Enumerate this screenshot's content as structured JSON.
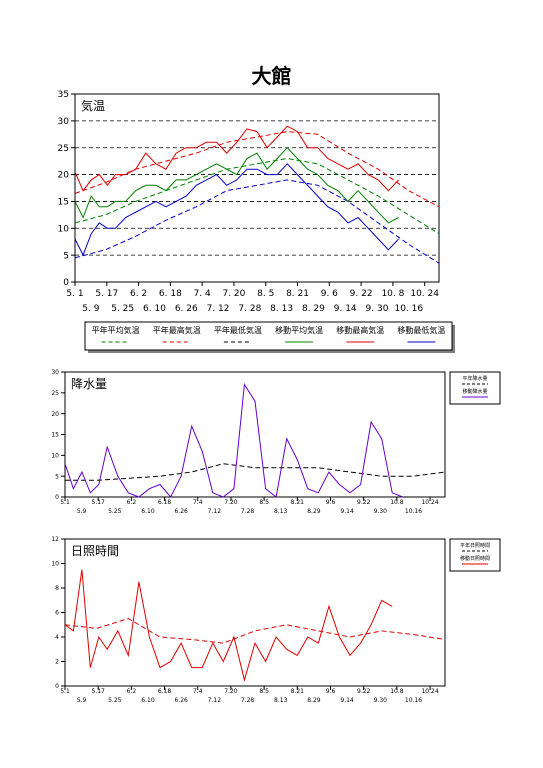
{
  "page_title": "大館",
  "chart_data": [
    {
      "type": "line",
      "title": "気温",
      "ylim": [
        0,
        35
      ],
      "y_ticks": [
        "0",
        "5",
        "10",
        "15",
        "20",
        "25",
        "30",
        "35"
      ],
      "grid": true,
      "x_ticks_top": [
        "5. 1",
        "5. 17",
        "6. 2",
        "6. 18",
        "7. 4",
        "7. 20",
        "8. 5",
        "8. 21",
        "9. 6",
        "9. 22",
        "10. 8",
        "10. 24"
      ],
      "x_ticks_bottom": [
        "5. 9",
        "5. 25",
        "6. 10",
        "6. 26",
        "7. 12",
        "7. 28",
        "8. 13",
        "8. 29",
        "9. 14",
        "9. 30",
        "10. 16"
      ],
      "legend_position": "bottom",
      "legend": [
        {
          "label": "平年平均気温",
          "color": "#008000",
          "dash": true
        },
        {
          "label": "平年最高気温",
          "color": "#e00000",
          "dash": true
        },
        {
          "label": "平年最低気温",
          "color": "#000000",
          "dash": true
        },
        {
          "label": "移動平均気温",
          "color": "#008000",
          "dash": false
        },
        {
          "label": "移動最高気温",
          "color": "#e00000",
          "dash": false
        },
        {
          "label": "移動最低気温",
          "color": "#0000cc",
          "dash": false
        }
      ],
      "series": [
        {
          "name": "平年平均気温",
          "color": "#008000",
          "dash": true,
          "x_days": [
            0,
            15,
            30,
            45,
            60,
            75,
            90,
            105,
            120,
            135,
            150,
            165,
            180
          ],
          "values": [
            11,
            12.5,
            15,
            17,
            19,
            21,
            22,
            23,
            22,
            19,
            16,
            12.5,
            9
          ]
        },
        {
          "name": "平年最高気温",
          "color": "#e00000",
          "dash": true,
          "x_days": [
            0,
            15,
            30,
            45,
            60,
            75,
            90,
            105,
            120,
            135,
            150,
            165,
            180
          ],
          "values": [
            16.5,
            18.5,
            21,
            22.5,
            24,
            26,
            27,
            28,
            27.5,
            24,
            21,
            17,
            14
          ]
        },
        {
          "name": "平年最低気温",
          "color": "#0000cc",
          "dash": true,
          "x_days": [
            0,
            15,
            30,
            45,
            60,
            75,
            90,
            105,
            120,
            135,
            150,
            165,
            180
          ],
          "values": [
            4.5,
            6,
            8.5,
            11.5,
            14,
            17,
            18,
            19,
            18,
            15,
            11,
            7,
            3.5
          ]
        },
        {
          "name": "移動平均気温",
          "color": "#008000",
          "dash": false,
          "x_days": [
            0,
            4,
            8,
            12,
            16,
            20,
            25,
            30,
            35,
            40,
            45,
            50,
            55,
            60,
            65,
            70,
            75,
            80,
            85,
            90,
            95,
            100,
            105,
            110,
            115,
            120,
            125,
            130,
            135,
            140,
            145,
            150,
            155,
            160
          ],
          "values": [
            15,
            12,
            16,
            14,
            14,
            15,
            15,
            17,
            18,
            18,
            17,
            19,
            19,
            20,
            21,
            22,
            21,
            20,
            23,
            24,
            21,
            23,
            25,
            23,
            21,
            20,
            18,
            17,
            15,
            17,
            15,
            13,
            11,
            12
          ]
        },
        {
          "name": "移動最高気温",
          "color": "#e00000",
          "dash": false,
          "x_days": [
            0,
            4,
            8,
            12,
            16,
            20,
            25,
            30,
            35,
            40,
            45,
            50,
            55,
            60,
            65,
            70,
            75,
            80,
            85,
            90,
            95,
            100,
            105,
            110,
            115,
            120,
            125,
            130,
            135,
            140,
            145,
            150,
            155,
            160
          ],
          "values": [
            20.5,
            17,
            19,
            20,
            18,
            20,
            20,
            21,
            24,
            22,
            21,
            24,
            25,
            25,
            26,
            26,
            24,
            26,
            28.5,
            28,
            25,
            27,
            29,
            28,
            25,
            25,
            23,
            22,
            21,
            22,
            20,
            19,
            17,
            19
          ]
        },
        {
          "name": "移動最低気温",
          "color": "#0000cc",
          "dash": false,
          "x_days": [
            0,
            4,
            8,
            12,
            16,
            20,
            25,
            30,
            35,
            40,
            45,
            50,
            55,
            60,
            65,
            70,
            75,
            80,
            85,
            90,
            95,
            100,
            105,
            110,
            115,
            120,
            125,
            130,
            135,
            140,
            145,
            150,
            155,
            160
          ],
          "values": [
            8,
            5,
            9,
            11,
            10,
            10,
            12,
            13,
            14,
            15,
            14,
            15,
            16,
            18,
            19,
            20,
            18,
            19,
            21,
            21,
            20,
            20,
            22,
            20,
            18,
            16,
            14,
            13,
            11,
            12,
            10,
            8,
            6,
            8
          ]
        }
      ]
    },
    {
      "type": "line",
      "title": "降水量",
      "ylim": [
        0,
        30
      ],
      "y_ticks": [
        "0",
        "5",
        "10",
        "15",
        "20",
        "25",
        "30"
      ],
      "grid": false,
      "x_ticks_top": [
        "5.1",
        "5.17",
        "6.2",
        "6.18",
        "7.4",
        "7.20",
        "8.5",
        "8.21",
        "9.6",
        "9.22",
        "10.8",
        "10.24"
      ],
      "x_ticks_bottom": [
        "5.9",
        "5.25",
        "6.10",
        "6.26",
        "7.12",
        "7.28",
        "8.13",
        "8.29",
        "9.14",
        "9.30",
        "10.16"
      ],
      "legend_position": "right",
      "legend": [
        {
          "label": "平年降水量",
          "color": "#000000",
          "dash": true
        },
        {
          "label": "移動降水量",
          "color": "#6600cc",
          "dash": false
        }
      ],
      "series": [
        {
          "name": "平年降水量",
          "color": "#000000",
          "dash": true,
          "x_days": [
            0,
            15,
            30,
            45,
            60,
            75,
            90,
            105,
            120,
            135,
            150,
            165,
            180
          ],
          "values": [
            4,
            4,
            4.5,
            5,
            6,
            8,
            7,
            7,
            7,
            6,
            5,
            5,
            6
          ]
        },
        {
          "name": "移動降水量",
          "color": "#6600cc",
          "dash": false,
          "x_days": [
            0,
            4,
            8,
            12,
            16,
            20,
            25,
            30,
            35,
            40,
            45,
            50,
            55,
            60,
            65,
            70,
            75,
            80,
            85,
            90,
            95,
            100,
            105,
            110,
            115,
            120,
            125,
            130,
            135,
            140,
            145,
            150,
            155,
            160
          ],
          "values": [
            8,
            2,
            6,
            1,
            3,
            12,
            5,
            1,
            0,
            2,
            3,
            0,
            5,
            17,
            11,
            1,
            0,
            2,
            27,
            23,
            2,
            0,
            14,
            9,
            2,
            1,
            6,
            3,
            1,
            3,
            18,
            14,
            1,
            0
          ]
        }
      ]
    },
    {
      "type": "line",
      "title": "日照時間",
      "ylim": [
        0,
        12
      ],
      "y_ticks": [
        "0",
        "2",
        "4",
        "6",
        "8",
        "10",
        "12"
      ],
      "grid": false,
      "x_ticks_top": [
        "5.1",
        "5.17",
        "6.2",
        "6.18",
        "7.4",
        "7.20",
        "8.5",
        "8.21",
        "9.6",
        "9.22",
        "10.8",
        "10.24"
      ],
      "x_ticks_bottom": [
        "5.9",
        "5.25",
        "6.10",
        "6.26",
        "7.12",
        "7.28",
        "8.13",
        "8.29",
        "9.14",
        "9.30",
        "10.16"
      ],
      "legend_position": "right",
      "legend": [
        {
          "label": "平年日照時間",
          "color": "#000000",
          "dash": true
        },
        {
          "label": "移動日照時間",
          "color": "#e00000",
          "dash": false
        }
      ],
      "series": [
        {
          "name": "平年日照時間",
          "color": "#e00000",
          "dash": true,
          "x_days": [
            0,
            15,
            30,
            45,
            60,
            75,
            90,
            105,
            120,
            135,
            150,
            165,
            180
          ],
          "values": [
            5,
            4.7,
            5.5,
            4,
            3.8,
            3.5,
            4.5,
            5,
            4.5,
            4,
            4.5,
            4.2,
            3.8
          ]
        },
        {
          "name": "移動日照時間",
          "color": "#e00000",
          "dash": false,
          "x_days": [
            0,
            4,
            8,
            12,
            16,
            20,
            25,
            30,
            35,
            40,
            45,
            50,
            55,
            60,
            65,
            70,
            75,
            80,
            85,
            90,
            95,
            100,
            105,
            110,
            115,
            120,
            125,
            130,
            135,
            140,
            145,
            150,
            155,
            160
          ],
          "values": [
            5,
            4.5,
            9.5,
            1.5,
            4,
            3,
            4.5,
            2.5,
            8.5,
            4,
            1.5,
            2,
            3.5,
            1.5,
            1.5,
            3.5,
            2,
            4,
            0.5,
            3.5,
            2,
            4,
            3,
            2.5,
            4,
            3.5,
            6.5,
            4,
            2.5,
            3.5,
            5,
            7,
            6.5,
            null
          ]
        }
      ]
    }
  ]
}
